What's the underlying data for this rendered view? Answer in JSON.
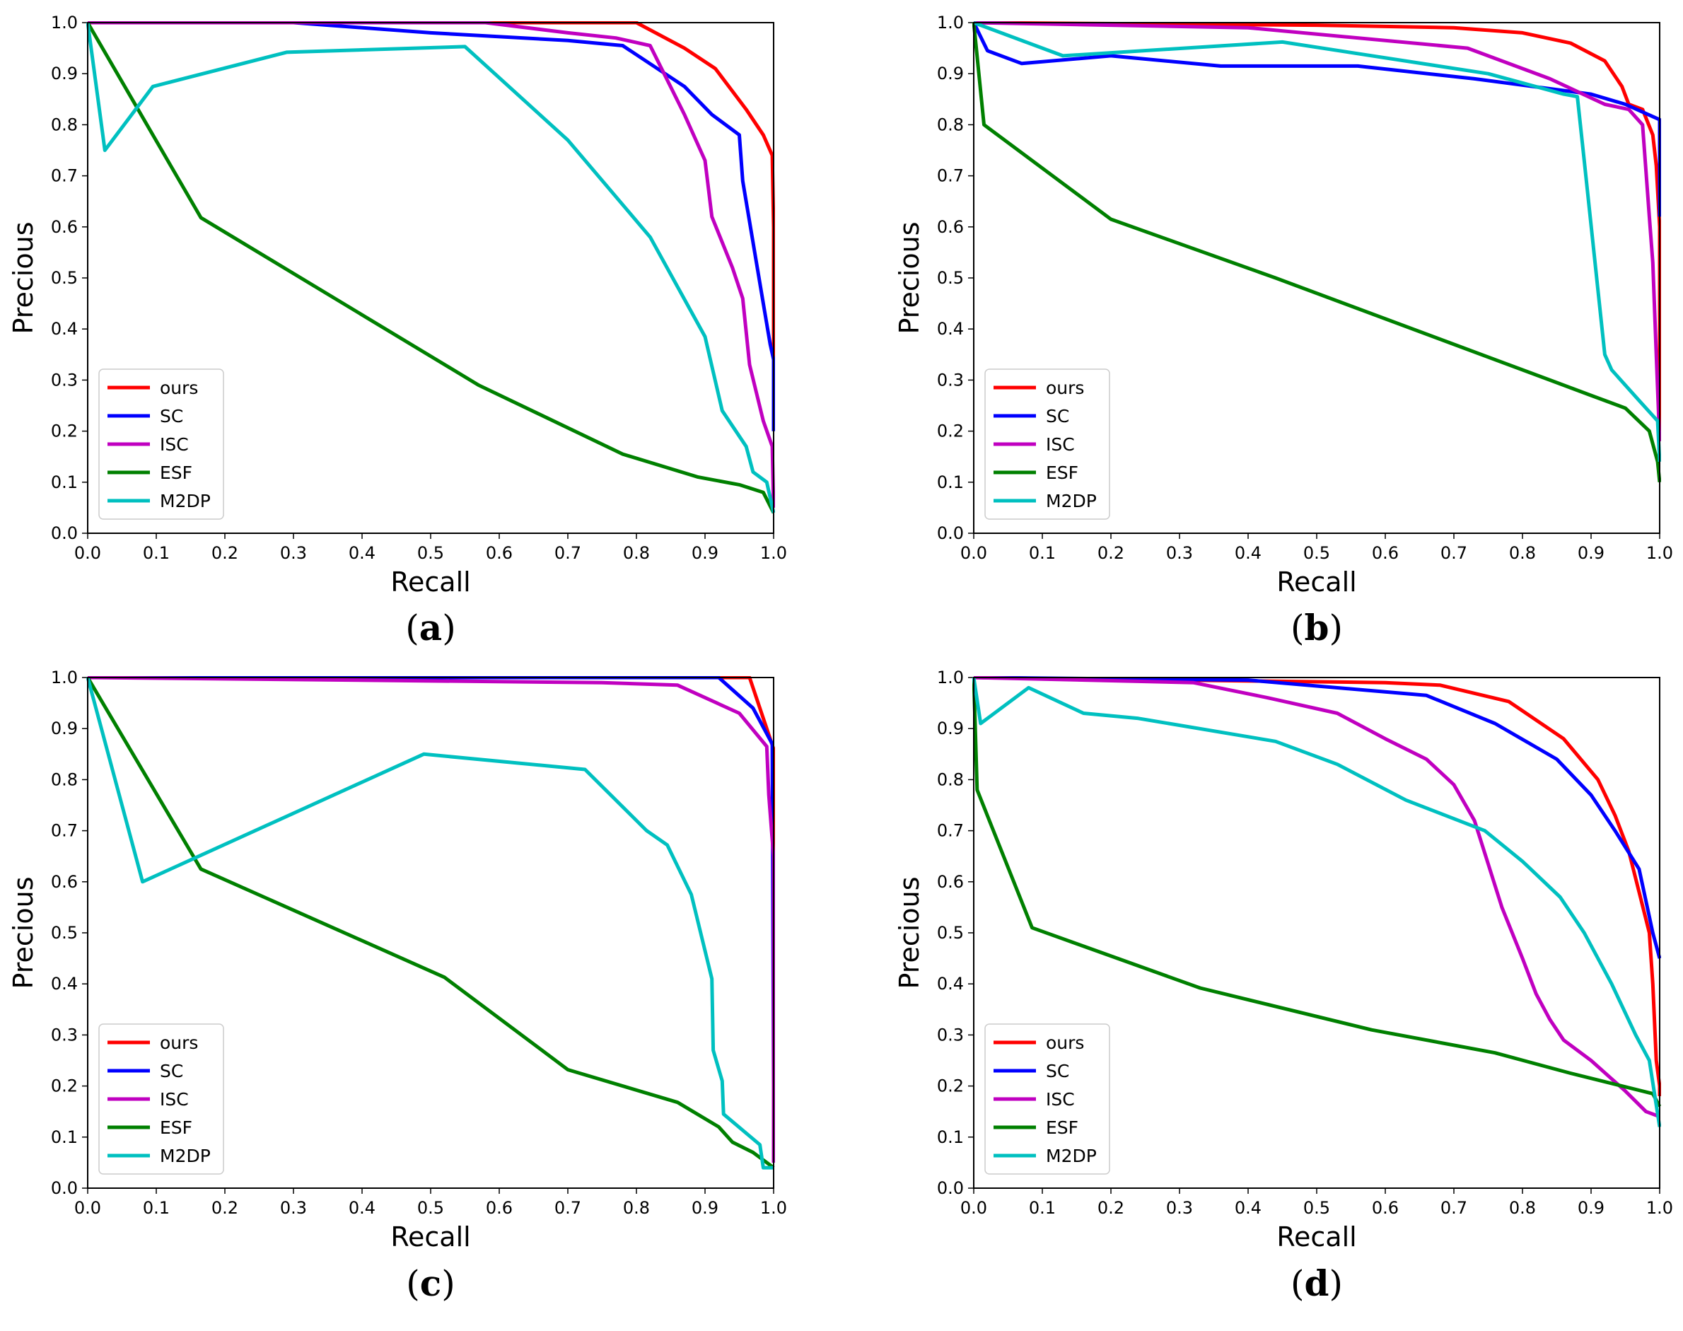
{
  "figure": {
    "panels": [
      "a",
      "b",
      "c",
      "d"
    ]
  },
  "chart_data": [
    {
      "type": "line",
      "panel": "a",
      "caption": "a",
      "xlabel": "Recall",
      "ylabel": "Precious",
      "xlim": [
        0,
        1
      ],
      "ylim": [
        0,
        1
      ],
      "xticks": [
        "0.0",
        "0.1",
        "0.2",
        "0.3",
        "0.4",
        "0.5",
        "0.6",
        "0.7",
        "0.8",
        "0.9",
        "1.0"
      ],
      "yticks": [
        "0.0",
        "0.1",
        "0.2",
        "0.3",
        "0.4",
        "0.5",
        "0.6",
        "0.7",
        "0.8",
        "0.9",
        "1.0"
      ],
      "legend_position": "lower-left",
      "series": [
        {
          "name": "ours",
          "color": "#ff0000",
          "x": [
            0,
            0.8,
            0.87,
            0.915,
            0.96,
            0.985,
            0.998,
            1.0,
            1.0
          ],
          "y": [
            1.0,
            1.0,
            0.95,
            0.91,
            0.83,
            0.78,
            0.74,
            0.6,
            0.2
          ]
        },
        {
          "name": "SC",
          "color": "#0000ff",
          "x": [
            0,
            0.3,
            0.5,
            0.7,
            0.78,
            0.87,
            0.91,
            0.95,
            0.955,
            0.985,
            0.995,
            1.0,
            1.0
          ],
          "y": [
            1.0,
            1.0,
            0.98,
            0.965,
            0.955,
            0.875,
            0.82,
            0.78,
            0.69,
            0.45,
            0.37,
            0.34,
            0.2
          ]
        },
        {
          "name": "ISC",
          "color": "#c000c0",
          "x": [
            0,
            0.58,
            0.7,
            0.77,
            0.82,
            0.87,
            0.9,
            0.91,
            0.94,
            0.955,
            0.965,
            0.985,
            0.998,
            1.0
          ],
          "y": [
            1.0,
            1.0,
            0.98,
            0.97,
            0.955,
            0.82,
            0.73,
            0.62,
            0.52,
            0.46,
            0.33,
            0.22,
            0.17,
            0.05
          ]
        },
        {
          "name": "ESF",
          "color": "#008000",
          "x": [
            0,
            0.165,
            0.57,
            0.78,
            0.89,
            0.95,
            0.985,
            1.0
          ],
          "y": [
            1.0,
            0.618,
            0.29,
            0.155,
            0.11,
            0.095,
            0.08,
            0.04
          ]
        },
        {
          "name": "M2DP",
          "color": "#00c0c0",
          "x": [
            0,
            0.025,
            0.095,
            0.29,
            0.55,
            0.7,
            0.82,
            0.9,
            0.925,
            0.96,
            0.97,
            0.99,
            1.0
          ],
          "y": [
            1.0,
            0.75,
            0.875,
            0.942,
            0.953,
            0.77,
            0.58,
            0.385,
            0.24,
            0.17,
            0.12,
            0.1,
            0.04
          ]
        }
      ]
    },
    {
      "type": "line",
      "panel": "b",
      "caption": "b",
      "xlabel": "Recall",
      "ylabel": "Precious",
      "xlim": [
        0,
        1
      ],
      "ylim": [
        0,
        1
      ],
      "xticks": [
        "0.0",
        "0.1",
        "0.2",
        "0.3",
        "0.4",
        "0.5",
        "0.6",
        "0.7",
        "0.8",
        "0.9",
        "1.0"
      ],
      "yticks": [
        "0.0",
        "0.1",
        "0.2",
        "0.3",
        "0.4",
        "0.5",
        "0.6",
        "0.7",
        "0.8",
        "0.9",
        "1.0"
      ],
      "legend_position": "lower-left",
      "series": [
        {
          "name": "ours",
          "color": "#ff0000",
          "x": [
            0,
            0.5,
            0.7,
            0.8,
            0.87,
            0.92,
            0.945,
            0.955,
            0.975,
            0.99,
            0.995,
            1.0,
            1.0
          ],
          "y": [
            1.0,
            0.995,
            0.99,
            0.98,
            0.96,
            0.925,
            0.875,
            0.84,
            0.83,
            0.78,
            0.72,
            0.6,
            0.2
          ]
        },
        {
          "name": "SC",
          "color": "#0000ff",
          "x": [
            0,
            0.02,
            0.07,
            0.2,
            0.36,
            0.56,
            0.73,
            0.9,
            0.95,
            1.0,
            1.0
          ],
          "y": [
            1.0,
            0.945,
            0.92,
            0.935,
            0.915,
            0.915,
            0.89,
            0.86,
            0.84,
            0.81,
            0.62
          ]
        },
        {
          "name": "ISC",
          "color": "#c000c0",
          "x": [
            0,
            0.4,
            0.72,
            0.84,
            0.92,
            0.955,
            0.975,
            0.985,
            0.99,
            0.995,
            1.0
          ],
          "y": [
            1.0,
            0.99,
            0.95,
            0.89,
            0.84,
            0.83,
            0.8,
            0.62,
            0.53,
            0.35,
            0.18
          ]
        },
        {
          "name": "ESF",
          "color": "#008000",
          "x": [
            0,
            0.015,
            0.2,
            0.44,
            0.7,
            0.84,
            0.9,
            0.95,
            0.985,
            0.997,
            1.0
          ],
          "y": [
            1.0,
            0.8,
            0.615,
            0.5,
            0.37,
            0.3,
            0.27,
            0.245,
            0.2,
            0.14,
            0.1
          ]
        },
        {
          "name": "M2DP",
          "color": "#00c0c0",
          "x": [
            0,
            0.13,
            0.45,
            0.75,
            0.86,
            0.88,
            0.89,
            0.92,
            0.93,
            0.97,
            0.997,
            1.0
          ],
          "y": [
            1.0,
            0.935,
            0.962,
            0.9,
            0.86,
            0.855,
            0.73,
            0.35,
            0.32,
            0.26,
            0.22,
            0.14
          ]
        }
      ]
    },
    {
      "type": "line",
      "panel": "c",
      "caption": "c",
      "xlabel": "Recall",
      "ylabel": "Precious",
      "xlim": [
        0,
        1
      ],
      "ylim": [
        0,
        1
      ],
      "xticks": [
        "0.0",
        "0.1",
        "0.2",
        "0.3",
        "0.4",
        "0.5",
        "0.6",
        "0.7",
        "0.8",
        "0.9",
        "1.0"
      ],
      "yticks": [
        "0.0",
        "0.1",
        "0.2",
        "0.3",
        "0.4",
        "0.5",
        "0.6",
        "0.7",
        "0.8",
        "0.9",
        "1.0"
      ],
      "legend_position": "lower-left",
      "series": [
        {
          "name": "ours",
          "color": "#ff0000",
          "x": [
            0,
            0.965,
            0.99,
            1.0,
            1.0
          ],
          "y": [
            1.0,
            1.0,
            0.9,
            0.86,
            0.2
          ]
        },
        {
          "name": "SC",
          "color": "#0000ff",
          "x": [
            0,
            0.92,
            0.97,
            0.998,
            1.0,
            1.0
          ],
          "y": [
            1.0,
            1.0,
            0.94,
            0.87,
            0.2,
            0.05
          ]
        },
        {
          "name": "ISC",
          "color": "#c000c0",
          "x": [
            0,
            0.75,
            0.86,
            0.95,
            0.99,
            0.993,
            0.997,
            1.0,
            1.0
          ],
          "y": [
            1.0,
            0.99,
            0.985,
            0.93,
            0.865,
            0.77,
            0.7,
            0.65,
            0.05
          ]
        },
        {
          "name": "ESF",
          "color": "#008000",
          "x": [
            0,
            0.165,
            0.52,
            0.7,
            0.86,
            0.92,
            0.94,
            0.97,
            0.99,
            1.0
          ],
          "y": [
            1.0,
            0.625,
            0.413,
            0.232,
            0.168,
            0.12,
            0.09,
            0.07,
            0.05,
            0.04
          ]
        },
        {
          "name": "M2DP",
          "color": "#00c0c0",
          "x": [
            0,
            0.08,
            0.49,
            0.725,
            0.815,
            0.845,
            0.88,
            0.91,
            0.912,
            0.925,
            0.927,
            0.98,
            0.985,
            1.0
          ],
          "y": [
            1.0,
            0.6,
            0.85,
            0.82,
            0.7,
            0.672,
            0.575,
            0.41,
            0.27,
            0.21,
            0.145,
            0.085,
            0.04,
            0.04
          ]
        }
      ]
    },
    {
      "type": "line",
      "panel": "d",
      "caption": "d",
      "xlabel": "Recall",
      "ylabel": "Precious",
      "xlim": [
        0,
        1
      ],
      "ylim": [
        0,
        1
      ],
      "xticks": [
        "0.0",
        "0.1",
        "0.2",
        "0.3",
        "0.4",
        "0.5",
        "0.6",
        "0.7",
        "0.8",
        "0.9",
        "1.0"
      ],
      "yticks": [
        "0.0",
        "0.1",
        "0.2",
        "0.3",
        "0.4",
        "0.5",
        "0.6",
        "0.7",
        "0.8",
        "0.9",
        "1.0"
      ],
      "legend_position": "lower-left",
      "series": [
        {
          "name": "ours",
          "color": "#ff0000",
          "x": [
            0,
            0.6,
            0.68,
            0.78,
            0.86,
            0.91,
            0.935,
            0.955,
            0.97,
            0.985,
            0.99,
            0.995,
            1.0,
            1.0
          ],
          "y": [
            1.0,
            0.99,
            0.985,
            0.953,
            0.88,
            0.8,
            0.73,
            0.66,
            0.58,
            0.5,
            0.4,
            0.25,
            0.2,
            0.18
          ]
        },
        {
          "name": "SC",
          "color": "#0000ff",
          "x": [
            0,
            0.4,
            0.66,
            0.76,
            0.85,
            0.9,
            0.935,
            0.97,
            0.99,
            1.0
          ],
          "y": [
            1.0,
            0.995,
            0.965,
            0.91,
            0.84,
            0.77,
            0.7,
            0.625,
            0.5,
            0.45
          ]
        },
        {
          "name": "ISC",
          "color": "#c000c0",
          "x": [
            0,
            0.32,
            0.43,
            0.53,
            0.6,
            0.66,
            0.7,
            0.73,
            0.77,
            0.8,
            0.82,
            0.84,
            0.86,
            0.9,
            0.95,
            0.98,
            1.0
          ],
          "y": [
            1.0,
            0.99,
            0.96,
            0.93,
            0.88,
            0.84,
            0.79,
            0.72,
            0.55,
            0.45,
            0.38,
            0.33,
            0.29,
            0.25,
            0.19,
            0.15,
            0.14
          ]
        },
        {
          "name": "ESF",
          "color": "#008000",
          "x": [
            0,
            0.005,
            0.085,
            0.33,
            0.58,
            0.76,
            0.87,
            0.99,
            1.0
          ],
          "y": [
            1.0,
            0.78,
            0.51,
            0.392,
            0.31,
            0.265,
            0.225,
            0.185,
            0.16
          ]
        },
        {
          "name": "M2DP",
          "color": "#00c0c0",
          "x": [
            0,
            0.01,
            0.08,
            0.16,
            0.24,
            0.44,
            0.53,
            0.63,
            0.745,
            0.8,
            0.855,
            0.89,
            0.93,
            0.965,
            0.985,
            1.0
          ],
          "y": [
            1.0,
            0.91,
            0.98,
            0.93,
            0.92,
            0.875,
            0.83,
            0.76,
            0.7,
            0.64,
            0.57,
            0.5,
            0.4,
            0.3,
            0.25,
            0.12
          ]
        }
      ]
    }
  ]
}
